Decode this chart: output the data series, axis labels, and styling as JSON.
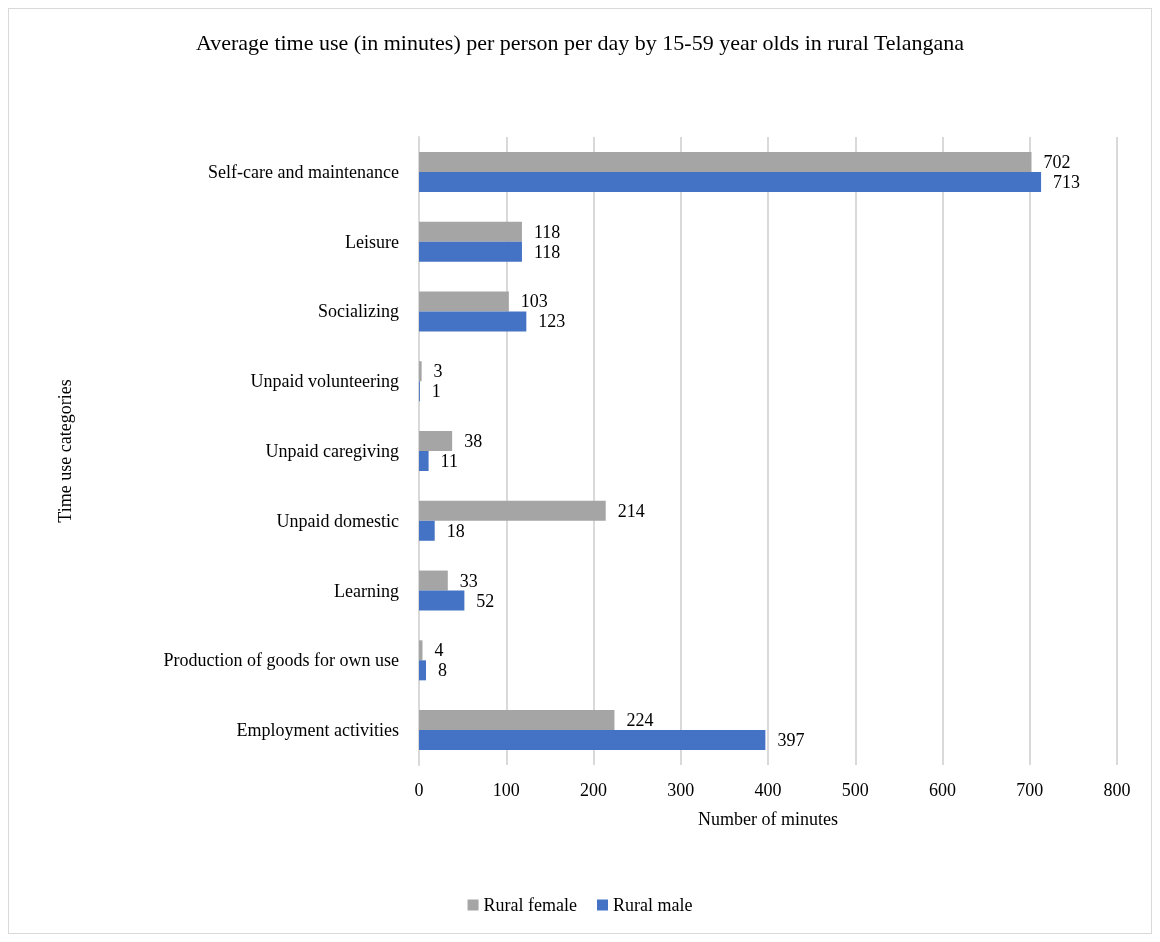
{
  "chart_data": {
    "type": "bar",
    "orientation": "horizontal",
    "title": "Average time use (in minutes) per person per day by 15-59 year olds in rural Telangana",
    "xlabel": "Number of minutes",
    "ylabel": "Time use categories",
    "categories": [
      "Self-care and maintenance",
      "Leisure",
      "Socializing",
      "Unpaid volunteering",
      "Unpaid caregiving",
      "Unpaid domestic",
      "Learning",
      "Production of goods for own use",
      "Employment activities"
    ],
    "series": [
      {
        "name": "Rural female",
        "color": "#a5a5a5",
        "values": [
          702,
          118,
          103,
          3,
          38,
          214,
          33,
          4,
          224
        ]
      },
      {
        "name": "Rural male",
        "color": "#4472c4",
        "values": [
          713,
          118,
          123,
          1,
          11,
          18,
          52,
          8,
          397
        ]
      }
    ],
    "xlim": [
      0,
      800
    ],
    "xticks": [
      0,
      100,
      200,
      300,
      400,
      500,
      600,
      700,
      800
    ],
    "grid": "x",
    "legend": "bottom",
    "data_labels": true
  }
}
